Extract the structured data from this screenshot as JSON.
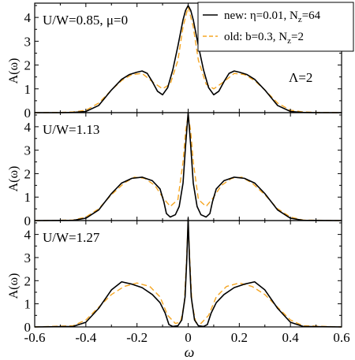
{
  "chart_data": {
    "type": "line",
    "xlabel": "ω",
    "ylabel": "A(ω)",
    "xlim": [
      -0.6,
      0.6
    ],
    "ylim": [
      0,
      4.6
    ],
    "xticks": [
      -0.6,
      -0.4,
      -0.2,
      0,
      0.2,
      0.4,
      0.6
    ],
    "xtick_labels": [
      "-0.6",
      "-0.4",
      "-0.2",
      "0",
      "0.2",
      "0.4",
      "0.6"
    ],
    "yticks": [
      0,
      1,
      2,
      3,
      4
    ],
    "ytick_labels": [
      "0",
      "1",
      "2",
      "3",
      "4"
    ],
    "grid": false,
    "legend": {
      "placement": "top-right of first panel",
      "entries": [
        {
          "prefix": "new: η=0.01, N",
          "sub": "z",
          "suffix": "=64",
          "color": "#000000",
          "style": "solid"
        },
        {
          "prefix": "old: b=0.3, N",
          "sub": "z",
          "suffix": "=2",
          "color": "#f5a623",
          "style": "dashed"
        }
      ]
    },
    "panels": [
      {
        "label": "U/W=0.85, μ=0",
        "annotation": "Λ=2",
        "series": [
          {
            "key": "new",
            "color": "#000000",
            "dash": "none",
            "x": [
              -0.6,
              -0.5,
              -0.45,
              -0.4,
              -0.35,
              -0.3,
              -0.26,
              -0.23,
              -0.2,
              -0.18,
              -0.16,
              -0.14,
              -0.12,
              -0.1,
              -0.08,
              -0.06,
              -0.04,
              -0.02,
              -0.01,
              0,
              0.01,
              0.02,
              0.04,
              0.06,
              0.08,
              0.1,
              0.12,
              0.14,
              0.16,
              0.18,
              0.2,
              0.23,
              0.26,
              0.3,
              0.35,
              0.4,
              0.45,
              0.5,
              0.6
            ],
            "y": [
              0,
              0,
              0.01,
              0.05,
              0.3,
              0.95,
              1.4,
              1.6,
              1.7,
              1.75,
              1.65,
              1.3,
              0.9,
              0.75,
              1.05,
              1.8,
              2.8,
              3.9,
              4.3,
              4.5,
              4.3,
              3.9,
              2.8,
              1.8,
              1.05,
              0.75,
              0.9,
              1.3,
              1.65,
              1.75,
              1.7,
              1.6,
              1.4,
              0.95,
              0.3,
              0.05,
              0.01,
              0,
              0
            ]
          },
          {
            "key": "old",
            "color": "#f5a623",
            "dash": "7,4",
            "x": [
              -0.6,
              -0.5,
              -0.45,
              -0.4,
              -0.35,
              -0.3,
              -0.26,
              -0.22,
              -0.18,
              -0.14,
              -0.1,
              -0.07,
              -0.04,
              -0.02,
              0,
              0.02,
              0.04,
              0.07,
              0.1,
              0.14,
              0.18,
              0.22,
              0.26,
              0.3,
              0.35,
              0.4,
              0.45,
              0.5,
              0.6
            ],
            "y": [
              0,
              0.01,
              0.03,
              0.1,
              0.4,
              0.95,
              1.35,
              1.6,
              1.65,
              1.3,
              1.0,
              1.2,
              2.2,
              3.6,
              4.45,
              3.6,
              2.2,
              1.2,
              1.0,
              1.3,
              1.65,
              1.6,
              1.35,
              0.95,
              0.4,
              0.1,
              0.03,
              0.01,
              0
            ]
          }
        ]
      },
      {
        "label": "U/W=1.13",
        "annotation": "",
        "series": [
          {
            "key": "new",
            "color": "#000000",
            "dash": "none",
            "x": [
              -0.6,
              -0.45,
              -0.4,
              -0.35,
              -0.3,
              -0.26,
              -0.22,
              -0.18,
              -0.14,
              -0.11,
              -0.095,
              -0.085,
              -0.07,
              -0.05,
              -0.035,
              -0.02,
              -0.01,
              0,
              0.01,
              0.02,
              0.035,
              0.05,
              0.07,
              0.085,
              0.095,
              0.11,
              0.14,
              0.18,
              0.22,
              0.26,
              0.3,
              0.35,
              0.4,
              0.45,
              0.6
            ],
            "y": [
              0,
              0.01,
              0.1,
              0.45,
              1.15,
              1.6,
              1.8,
              1.85,
              1.7,
              1.35,
              0.8,
              0.3,
              0.15,
              0.25,
              0.6,
              1.6,
              3.2,
              4.6,
              3.2,
              1.6,
              0.6,
              0.25,
              0.15,
              0.3,
              0.8,
              1.35,
              1.7,
              1.85,
              1.8,
              1.6,
              1.15,
              0.45,
              0.1,
              0.01,
              0
            ]
          },
          {
            "key": "old",
            "color": "#f5a623",
            "dash": "7,4",
            "x": [
              -0.6,
              -0.45,
              -0.4,
              -0.35,
              -0.3,
              -0.25,
              -0.21,
              -0.17,
              -0.13,
              -0.1,
              -0.07,
              -0.04,
              -0.02,
              -0.01,
              0,
              0.01,
              0.02,
              0.04,
              0.07,
              0.1,
              0.13,
              0.17,
              0.21,
              0.25,
              0.3,
              0.35,
              0.4,
              0.45,
              0.6
            ],
            "y": [
              0,
              0.02,
              0.15,
              0.5,
              1.1,
              1.6,
              1.85,
              1.8,
              1.5,
              1.0,
              0.6,
              0.9,
              2.5,
              3.8,
              4.5,
              3.8,
              2.5,
              0.9,
              0.6,
              1.0,
              1.5,
              1.8,
              1.85,
              1.6,
              1.1,
              0.5,
              0.15,
              0.02,
              0
            ]
          }
        ]
      },
      {
        "label": "U/W=1.27",
        "annotation": "",
        "series": [
          {
            "key": "new",
            "color": "#000000",
            "dash": "none",
            "x": [
              -0.6,
              -0.45,
              -0.4,
              -0.35,
              -0.3,
              -0.26,
              -0.22,
              -0.18,
              -0.14,
              -0.11,
              -0.09,
              -0.075,
              -0.06,
              -0.04,
              -0.025,
              -0.012,
              -0.005,
              0,
              0.005,
              0.012,
              0.025,
              0.04,
              0.06,
              0.075,
              0.09,
              0.11,
              0.14,
              0.18,
              0.22,
              0.26,
              0.3,
              0.35,
              0.4,
              0.45,
              0.6
            ],
            "y": [
              0,
              0.02,
              0.2,
              0.8,
              1.6,
              1.95,
              1.85,
              1.7,
              1.4,
              1.05,
              0.6,
              0.1,
              0.02,
              0.05,
              0.3,
              1.3,
              3.0,
              4.7,
              3.0,
              1.3,
              0.3,
              0.05,
              0.02,
              0.1,
              0.6,
              1.05,
              1.4,
              1.7,
              1.85,
              1.95,
              1.6,
              0.8,
              0.2,
              0.02,
              0
            ]
          },
          {
            "key": "old",
            "color": "#f5a623",
            "dash": "7,4",
            "x": [
              -0.6,
              -0.45,
              -0.4,
              -0.35,
              -0.3,
              -0.25,
              -0.2,
              -0.15,
              -0.11,
              -0.08,
              -0.05,
              -0.03,
              -0.015,
              -0.006,
              0,
              0.006,
              0.015,
              0.03,
              0.05,
              0.08,
              0.11,
              0.15,
              0.2,
              0.25,
              0.3,
              0.35,
              0.4,
              0.45,
              0.6
            ],
            "y": [
              0,
              0.05,
              0.3,
              0.85,
              1.4,
              1.75,
              1.9,
              1.75,
              1.3,
              0.5,
              0.15,
              0.2,
              1.0,
              3.0,
              4.6,
              3.0,
              1.0,
              0.2,
              0.15,
              0.5,
              1.3,
              1.75,
              1.9,
              1.75,
              1.4,
              0.85,
              0.3,
              0.05,
              0
            ]
          }
        ]
      }
    ]
  }
}
